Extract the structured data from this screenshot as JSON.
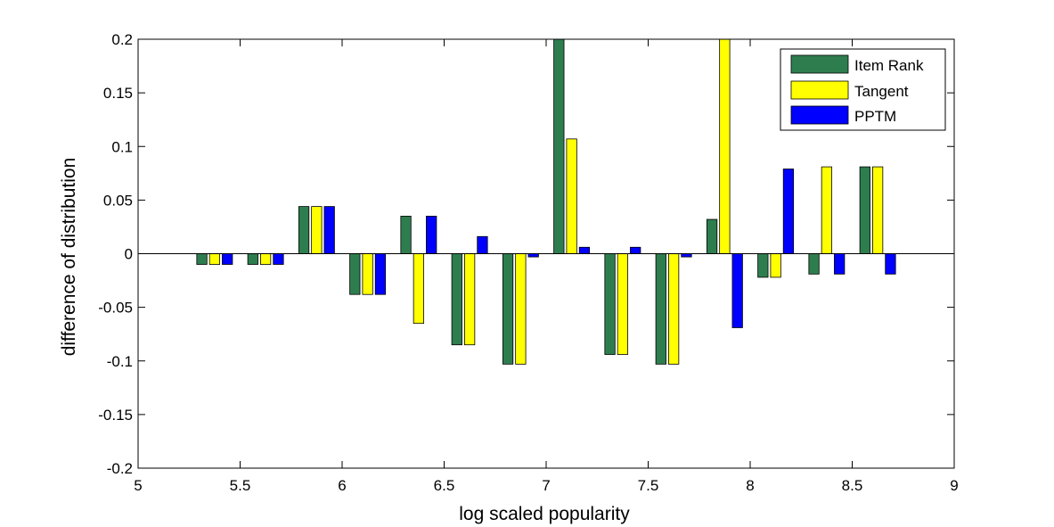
{
  "chart_data": {
    "type": "bar",
    "xlabel": "log scaled popularity",
    "ylabel": "difference of distribution",
    "xlim": [
      5,
      9
    ],
    "ylim": [
      -0.2,
      0.2
    ],
    "xticks": [
      5,
      5.5,
      6,
      6.5,
      7,
      7.5,
      8,
      8.5,
      9
    ],
    "xtick_labels": [
      "5",
      "5.5",
      "6",
      "6.5",
      "7",
      "7.5",
      "8",
      "8.5",
      "9"
    ],
    "yticks": [
      -0.2,
      -0.15,
      -0.1,
      -0.05,
      0,
      0.05,
      0.1,
      0.15,
      0.2
    ],
    "ytick_labels": [
      "-0.2",
      "-0.15",
      "-0.1",
      "-0.05",
      "0",
      "0.05",
      "0.1",
      "0.15",
      "0.2"
    ],
    "grid": false,
    "legend_position": "top-right",
    "x": [
      5.375,
      5.625,
      5.875,
      6.125,
      6.375,
      6.625,
      6.875,
      7.125,
      7.375,
      7.625,
      7.875,
      8.125,
      8.375,
      8.625
    ],
    "series": [
      {
        "name": "Item Rank",
        "color": "#2e7d4f",
        "values": [
          -0.01,
          -0.01,
          0.044,
          -0.038,
          0.035,
          -0.085,
          -0.103,
          0.2,
          -0.094,
          -0.103,
          0.032,
          -0.022,
          -0.019,
          0.081
        ]
      },
      {
        "name": "Tangent",
        "color": "#ffff00",
        "values": [
          -0.01,
          -0.01,
          0.044,
          -0.038,
          -0.065,
          -0.085,
          -0.103,
          0.107,
          -0.094,
          -0.103,
          0.2,
          -0.022,
          0.081,
          0.081
        ]
      },
      {
        "name": "PPTM",
        "color": "#0000ff",
        "values": [
          -0.01,
          -0.01,
          0.044,
          -0.038,
          0.035,
          0.016,
          -0.003,
          0.006,
          0.006,
          -0.003,
          -0.069,
          0.079,
          -0.019,
          -0.019
        ]
      }
    ]
  }
}
